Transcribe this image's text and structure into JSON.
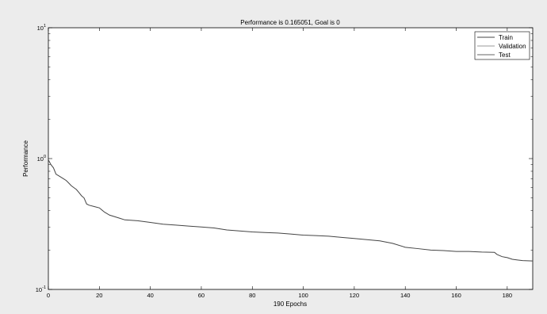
{
  "chart_data": {
    "type": "line",
    "title": "Performance is 0.165051, Goal is 0",
    "xlabel": "190 Epochs",
    "ylabel": "Performance",
    "xlim": [
      0,
      190
    ],
    "ylim": [
      0.1,
      10
    ],
    "yscale": "log",
    "grid": false,
    "legend_position": "top-right",
    "x_ticks": [
      0,
      20,
      40,
      60,
      80,
      100,
      120,
      140,
      160,
      180
    ],
    "y_ticks": [
      {
        "value": 0.1,
        "base": "10",
        "exp": "-1"
      },
      {
        "value": 1,
        "base": "10",
        "exp": "0"
      },
      {
        "value": 10,
        "base": "10",
        "exp": "1"
      }
    ],
    "colors": {
      "Train": "#444444",
      "Validation": "#9a9a9a",
      "Test": "#666666"
    },
    "series": [
      {
        "name": "Train",
        "x": [
          0,
          1,
          2,
          3,
          4,
          5,
          6,
          7,
          8,
          9,
          10,
          11,
          12,
          13,
          14,
          15,
          16,
          18,
          20,
          22,
          24,
          26,
          28,
          30,
          35,
          40,
          45,
          50,
          55,
          60,
          65,
          70,
          75,
          80,
          85,
          90,
          95,
          100,
          105,
          110,
          115,
          120,
          125,
          130,
          135,
          140,
          145,
          150,
          155,
          160,
          165,
          170,
          175,
          176,
          178,
          180,
          182,
          184,
          186,
          190
        ],
        "y": [
          0.98,
          0.9,
          0.85,
          0.76,
          0.74,
          0.72,
          0.7,
          0.68,
          0.65,
          0.62,
          0.6,
          0.58,
          0.55,
          0.52,
          0.5,
          0.45,
          0.44,
          0.43,
          0.42,
          0.39,
          0.37,
          0.36,
          0.35,
          0.34,
          0.335,
          0.325,
          0.315,
          0.31,
          0.305,
          0.3,
          0.295,
          0.285,
          0.28,
          0.275,
          0.272,
          0.27,
          0.265,
          0.26,
          0.258,
          0.255,
          0.25,
          0.245,
          0.24,
          0.235,
          0.225,
          0.21,
          0.205,
          0.2,
          0.198,
          0.195,
          0.195,
          0.193,
          0.192,
          0.185,
          0.178,
          0.175,
          0.17,
          0.168,
          0.166,
          0.165
        ]
      }
    ]
  }
}
